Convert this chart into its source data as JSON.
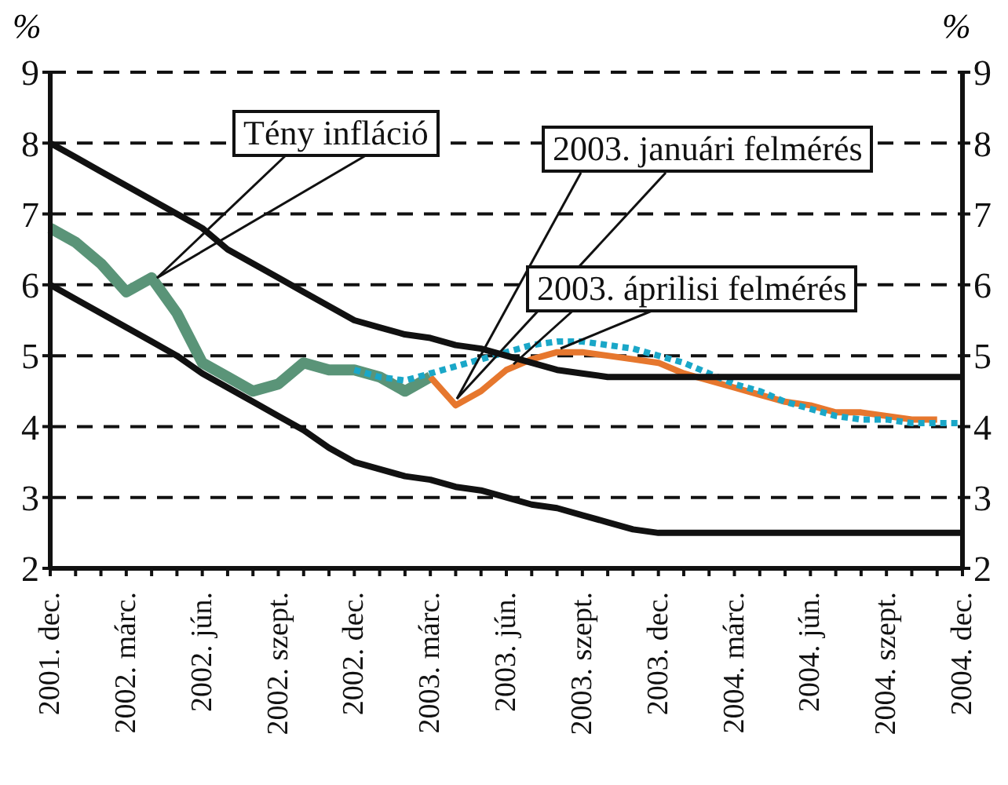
{
  "chart_data": {
    "type": "line",
    "categories": [
      "2001. dec.",
      null,
      null,
      "2002. márc.",
      null,
      null,
      "2002. jún.",
      null,
      null,
      "2002. szept.",
      null,
      null,
      "2002. dec.",
      null,
      null,
      "2003. márc.",
      null,
      null,
      "2003. jún.",
      null,
      null,
      "2003. szept.",
      null,
      null,
      "2003. dec.",
      null,
      null,
      "2004. márc.",
      null,
      null,
      "2004. jún.",
      null,
      null,
      "2004. szept.",
      null,
      null,
      "2004. dec."
    ],
    "ylabel": "%",
    "y2label": "%",
    "ylim": [
      2,
      9
    ],
    "yticks": [
      2,
      3,
      4,
      5,
      6,
      7,
      8,
      9
    ],
    "y2lim": [
      2,
      9
    ],
    "y2ticks": [
      2,
      3,
      4,
      5,
      6,
      7,
      8,
      9
    ],
    "grid": "y",
    "marker": "none",
    "series": [
      {
        "name": "Tény infláció",
        "color": "#5a9478",
        "values": [
          6.8,
          6.6,
          6.3,
          5.9,
          6.1,
          5.6,
          4.9,
          4.7,
          4.5,
          4.6,
          4.9,
          4.8,
          4.8,
          4.7,
          4.5,
          4.7,
          null,
          null,
          null,
          null,
          null,
          null,
          null,
          null,
          null,
          null,
          null,
          null,
          null,
          null,
          null,
          null,
          null,
          null,
          null,
          null,
          null
        ]
      },
      {
        "name": "2003. januári felmérés",
        "color": "#e6772e",
        "values": [
          null,
          null,
          null,
          null,
          null,
          null,
          null,
          null,
          null,
          null,
          null,
          null,
          null,
          null,
          null,
          4.7,
          4.3,
          4.5,
          4.8,
          4.95,
          5.05,
          5.05,
          5.0,
          4.95,
          4.9,
          4.75,
          4.65,
          4.55,
          4.45,
          4.35,
          4.3,
          4.2,
          4.2,
          4.15,
          4.1,
          4.1,
          null
        ]
      },
      {
        "name": "2003. áprilisi felmérés",
        "color": "#1aa7c8",
        "line_style": "dotted",
        "values": [
          null,
          null,
          null,
          null,
          null,
          null,
          null,
          null,
          null,
          null,
          null,
          null,
          4.8,
          4.7,
          4.65,
          4.75,
          4.85,
          4.95,
          5.05,
          5.15,
          5.2,
          5.2,
          5.15,
          5.1,
          5.0,
          4.9,
          4.75,
          4.6,
          4.5,
          4.35,
          4.25,
          4.15,
          4.1,
          4.1,
          4.05,
          4.05,
          4.05
        ]
      },
      {
        "color": "#111111",
        "values": [
          8,
          7.8,
          7.6,
          7.4,
          7.2,
          7.0,
          6.8,
          6.5,
          6.3,
          6.1,
          5.9,
          5.7,
          5.5,
          5.4,
          5.3,
          5.25,
          5.15,
          5.1,
          5.0,
          4.9,
          4.8,
          4.75,
          4.7,
          4.7,
          4.7,
          4.7,
          4.7,
          4.7,
          4.7,
          4.7,
          4.7,
          4.7,
          4.7,
          4.7,
          4.7,
          4.7,
          4.7
        ]
      },
      {
        "color": "#111111",
        "values": [
          6.0,
          5.8,
          5.6,
          5.4,
          5.2,
          5.0,
          4.75,
          4.55,
          4.35,
          4.15,
          3.95,
          3.7,
          3.5,
          3.4,
          3.3,
          3.25,
          3.15,
          3.1,
          3.0,
          2.9,
          2.85,
          2.75,
          2.65,
          2.55,
          2.5,
          2.5,
          2.5,
          2.5,
          2.5,
          2.5,
          2.5,
          2.5,
          2.5,
          2.5,
          2.5,
          2.5,
          2.5
        ]
      }
    ]
  }
}
